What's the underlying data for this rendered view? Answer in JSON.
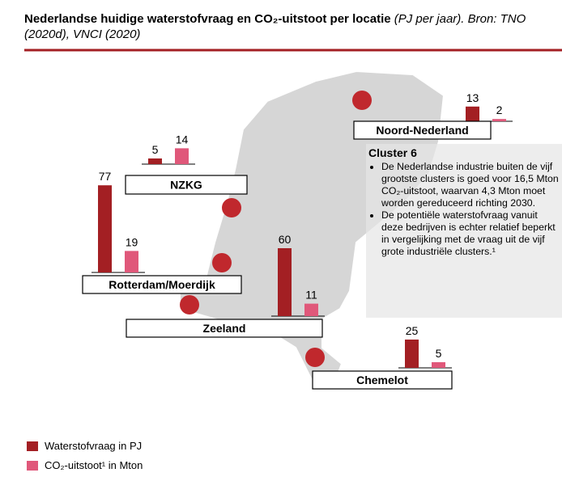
{
  "chart_data": {
    "type": "bar",
    "title": "Nederlandse huidige waterstofvraag en CO₂-uitstoot per locatie",
    "subtitle": "(PJ per jaar). Bron: TNO (2020d), VNCI (2020)",
    "categories": [
      "Noord-Nederland",
      "NZKG",
      "Rotterdam/Moerdijk",
      "Zeeland",
      "Chemelot"
    ],
    "series": [
      {
        "name": "Waterstofvraag in PJ",
        "color": "#a31f23",
        "values": [
          13,
          5,
          77,
          60,
          25
        ]
      },
      {
        "name": "CO₂-uitstoot¹ in Mton",
        "color": "#e0587a",
        "values": [
          2,
          14,
          19,
          11,
          5
        ]
      }
    ],
    "annotation": {
      "heading": "Cluster 6",
      "bullets": [
        "De Nederlandse industrie buiten de vijf grootste clusters is goed voor 16,5 Mton CO₂-uitstoot, waarvan 4,3 Mton moet worden gereduceerd richting 2030.",
        "De potentiële waterstofvraag vanuit deze bedrijven is echter relatief beperkt in vergelijking met de vraag uit de vijf grote industriële clusters.¹"
      ]
    }
  }
}
